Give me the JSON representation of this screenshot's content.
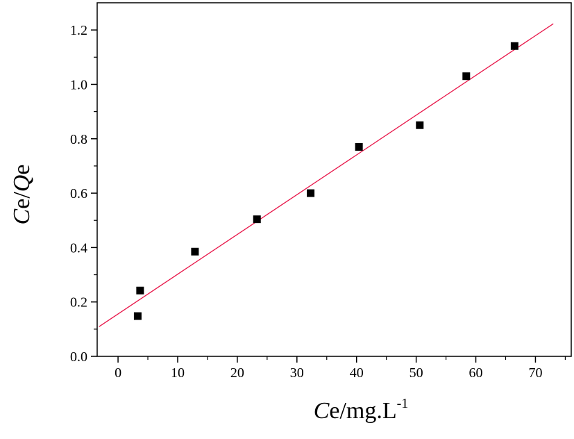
{
  "chart_data": {
    "type": "scatter",
    "xlabel": {
      "italic": "C",
      "rest": "e/mg.L",
      "sup": "-1"
    },
    "ylabel": {
      "italic1": "C",
      "mid": "e/",
      "italic2": "Q",
      "end": "e"
    },
    "xlim": [
      -3.5,
      76
    ],
    "ylim": [
      0,
      1.3
    ],
    "x_ticks": [
      0,
      10,
      20,
      30,
      40,
      50,
      60,
      70
    ],
    "x_tick_labels": [
      "0",
      "10",
      "20",
      "30",
      "40",
      "50",
      "60",
      "70"
    ],
    "y_ticks": [
      0,
      0.2,
      0.4,
      0.6,
      0.8,
      1.0,
      1.2
    ],
    "y_tick_labels": [
      "0.0",
      "0.2",
      "0.4",
      "0.6",
      "0.8",
      "1.0",
      "1.2"
    ],
    "grid": false,
    "series": [
      {
        "x": [
          3.3,
          3.7,
          12.9,
          23.3,
          32.3,
          40.4,
          50.6,
          58.4,
          66.5
        ],
        "y": [
          0.148,
          0.242,
          0.385,
          0.504,
          0.6,
          0.77,
          0.85,
          1.03,
          1.141
        ],
        "marker": "square",
        "color": "#000000"
      }
    ],
    "fit_line": {
      "x": [
        -3.2,
        73.0
      ],
      "y": [
        0.109,
        1.223
      ],
      "color": "#e8174a"
    }
  }
}
